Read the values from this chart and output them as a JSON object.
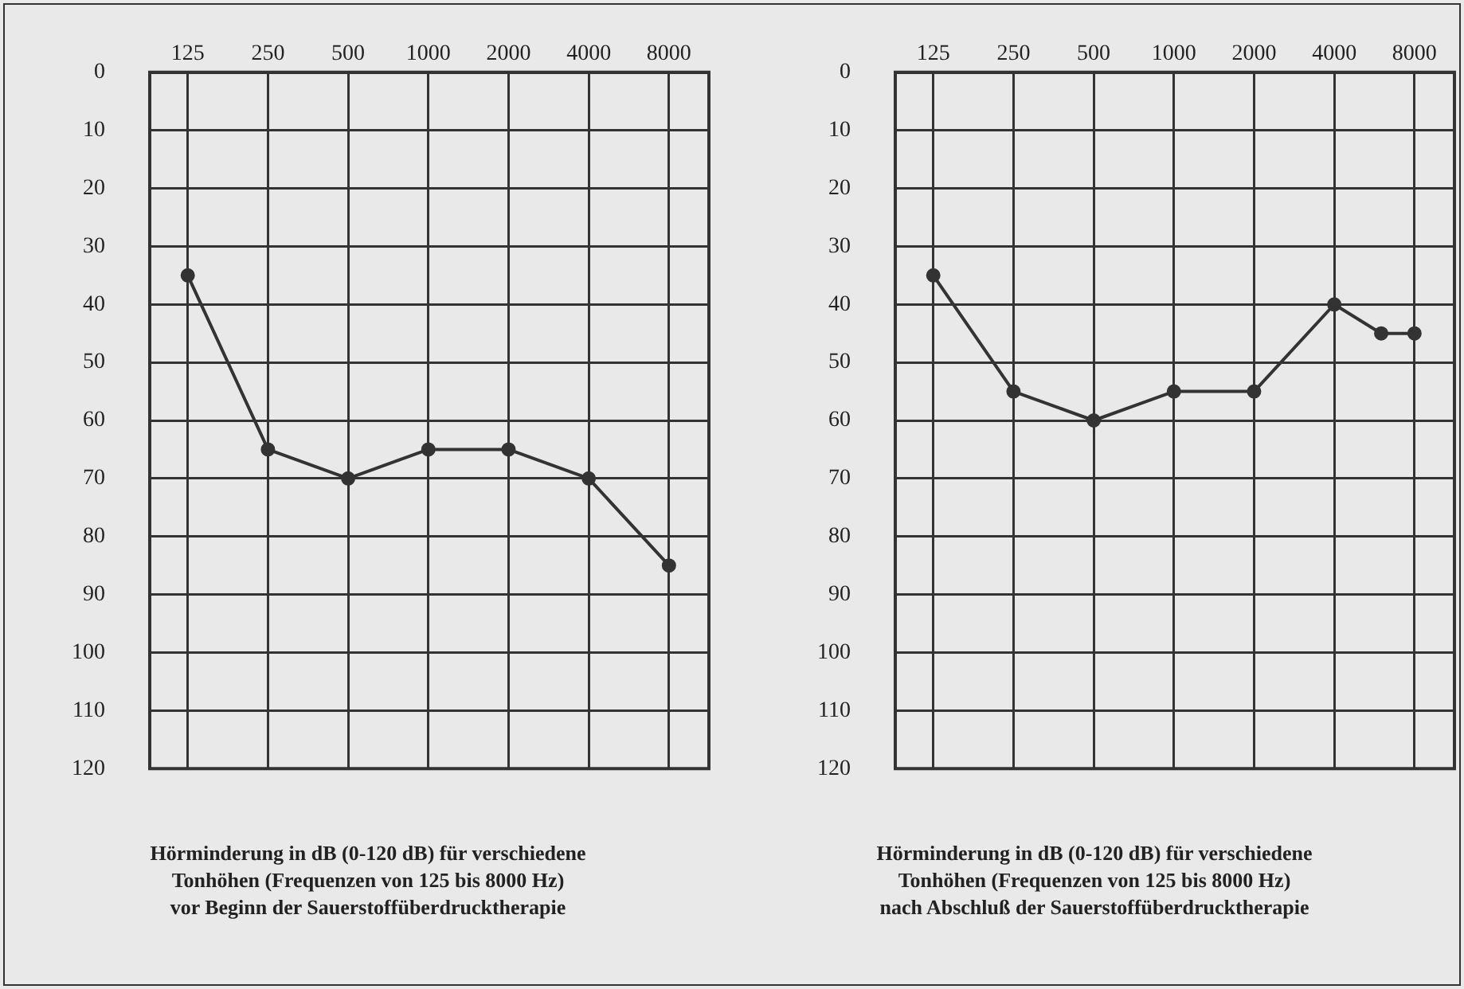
{
  "chart_data": [
    {
      "type": "line",
      "xlabel": "Hörminderung in dB (0-120 dB) für verschiedene\nTonhöhen (Frequenzen von 125 bis 8000 Hz)\nvor Beginn der Sauerstoffüberdrucktherapie",
      "x": [
        125,
        250,
        500,
        1000,
        2000,
        4000,
        8000
      ],
      "series": [
        {
          "color": "#333333",
          "values": [
            35,
            65,
            70,
            65,
            65,
            70,
            85
          ]
        }
      ],
      "log": "x",
      "xlim": [
        90,
        11300
      ],
      "xticks": [
        125,
        250,
        500,
        1000,
        2000,
        4000,
        8000
      ],
      "ylim": [
        120,
        0
      ],
      "yticks": [
        0,
        10,
        20,
        30,
        40,
        50,
        60,
        70,
        80,
        90,
        100,
        110,
        120
      ],
      "grid": true,
      "marker": "circle",
      "line_style": "solid",
      "legend": false
    },
    {
      "type": "line",
      "xlabel": "Hörminderung in dB (0-120 dB) für verschiedene\nTonhöhen (Frequenzen von 125 bis 8000 Hz)\nnach Abschluß der Sauerstoffüberdrucktherapie",
      "x": [
        125,
        250,
        500,
        1000,
        2000,
        4000,
        6000,
        8000
      ],
      "series": [
        {
          "color": "#333333",
          "values": [
            35,
            55,
            60,
            55,
            55,
            40,
            45,
            45
          ]
        }
      ],
      "log": "x",
      "xlim": [
        90,
        11300
      ],
      "xticks": [
        125,
        250,
        500,
        1000,
        2000,
        4000,
        8000
      ],
      "ylim": [
        120,
        0
      ],
      "yticks": [
        0,
        10,
        20,
        30,
        40,
        50,
        60,
        70,
        80,
        90,
        100,
        110,
        120
      ],
      "grid": true,
      "marker": "circle",
      "line_style": "solid",
      "legend": false
    }
  ]
}
